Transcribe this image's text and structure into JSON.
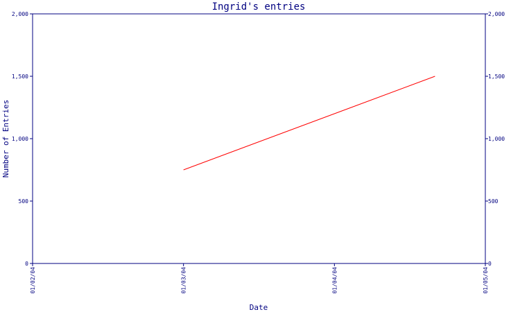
{
  "chart_data": {
    "type": "line",
    "title": "Ingrid's entries",
    "xlabel": "Date",
    "ylabel": "Number of Entries",
    "x_ticks": [
      "01/02/04",
      "01/03/04",
      "01/04/04",
      "01/05/04"
    ],
    "y_ticks": [
      "0",
      "500",
      "1,000",
      "1,500",
      "2,000"
    ],
    "ylim": [
      0,
      2000
    ],
    "xlim": [
      "2004-01-02",
      "2004-01-05"
    ],
    "secondary_y_axis": true,
    "grid": false,
    "series": [
      {
        "x": [
          "2004-01-03",
          "2004-01-04T16:00"
        ],
        "values": [
          750,
          1500
        ],
        "color": "#ff0000"
      }
    ],
    "colors": {
      "axis": "#000080",
      "line": "#ff0000",
      "background": "#ffffff"
    }
  }
}
